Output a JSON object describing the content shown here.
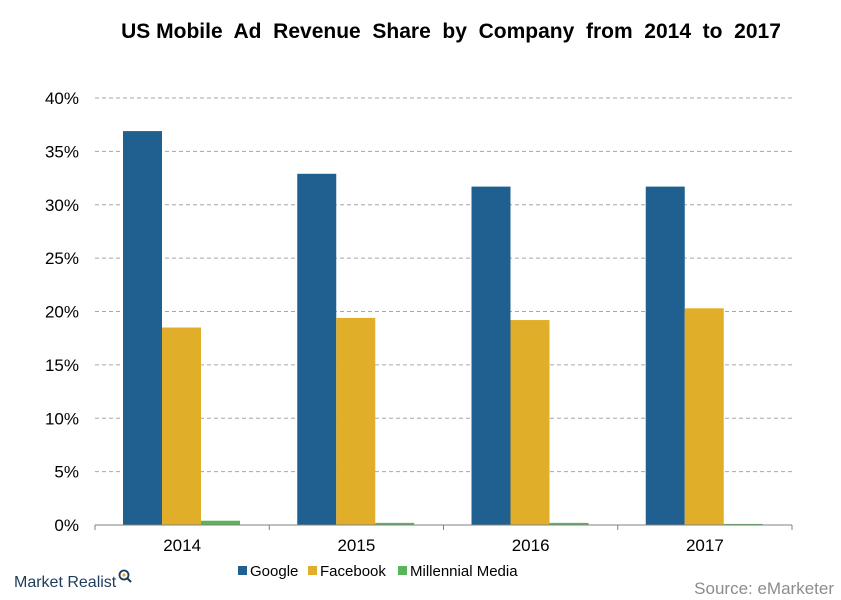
{
  "chart_data": {
    "type": "bar",
    "title": "US Mobile  Ad  Revenue  Share  by  Company  from  2014  to  2017",
    "xlabel": "",
    "ylabel": "",
    "categories": [
      "2014",
      "2015",
      "2016",
      "2017"
    ],
    "series": [
      {
        "name": "Google",
        "color": "#1f6091",
        "values": [
          36.9,
          32.9,
          31.7,
          31.7
        ]
      },
      {
        "name": "Facebook",
        "color": "#e1ae2a",
        "values": [
          18.5,
          19.4,
          19.2,
          20.3
        ]
      },
      {
        "name": "Millennial Media",
        "color": "#5ab45a",
        "values": [
          0.4,
          0.2,
          0.2,
          0.1
        ]
      }
    ],
    "ylim": [
      0,
      40
    ],
    "yticks": [
      0,
      5,
      10,
      15,
      20,
      25,
      30,
      35,
      40
    ],
    "ytick_labels": [
      "0%",
      "5%",
      "10%",
      "15%",
      "20%",
      "25%",
      "30%",
      "35%",
      "40%"
    ],
    "grid": true,
    "legend_position": "bottom"
  },
  "branding": {
    "logo_text": "Market Realist",
    "source": "Source: eMarketer"
  }
}
